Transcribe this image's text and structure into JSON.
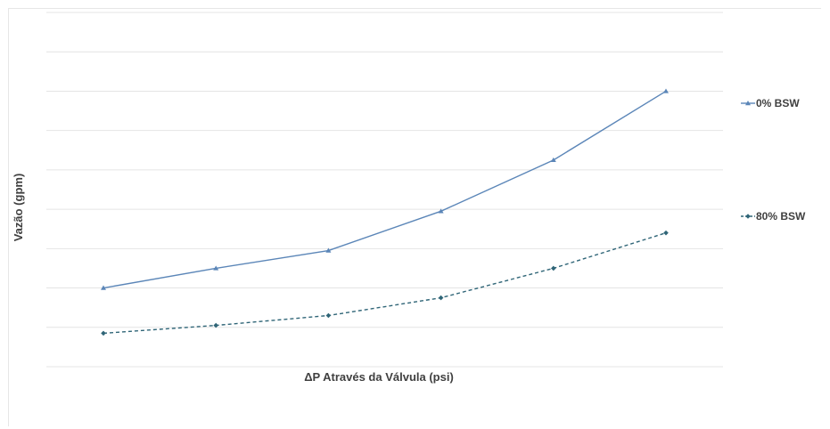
{
  "chart_data": {
    "type": "line",
    "title": "",
    "xlabel": "ΔP Através da Válvula (psi)",
    "ylabel": "Vazão (gpm)",
    "x": [
      1,
      2,
      3,
      4,
      5,
      6
    ],
    "ylim": [
      0,
      9
    ],
    "grid": true,
    "legend_position": "right",
    "series": [
      {
        "name": "0% BSW",
        "values": [
          2.0,
          2.5,
          2.95,
          3.95,
          5.25,
          7.0
        ],
        "color": "#5b86b8",
        "dash": "solid",
        "marker": "triangle"
      },
      {
        "name": "80% BSW",
        "values": [
          0.85,
          1.05,
          1.3,
          1.75,
          2.5,
          3.4
        ],
        "color": "#2f6577",
        "dash": "dashed",
        "marker": "diamond"
      }
    ]
  }
}
